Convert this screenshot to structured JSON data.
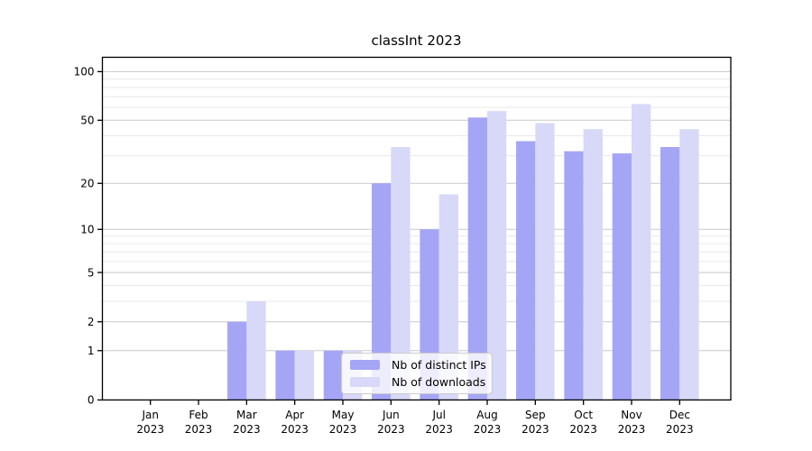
{
  "chart_data": {
    "type": "bar",
    "title": "classInt 2023",
    "categories": [
      "Jan",
      "Feb",
      "Mar",
      "Apr",
      "May",
      "Jun",
      "Jul",
      "Aug",
      "Sep",
      "Oct",
      "Nov",
      "Dec"
    ],
    "x_tick_year": "2023",
    "series": [
      {
        "name": "Nb of distinct IPs",
        "color": "#a5a5f6",
        "values": [
          0,
          0,
          2,
          1,
          1,
          20,
          10,
          52,
          37,
          32,
          31,
          34
        ]
      },
      {
        "name": "Nb of downloads",
        "color": "#d8d8f8",
        "values": [
          0,
          0,
          3,
          1,
          1,
          34,
          17,
          57,
          48,
          44,
          63,
          44
        ]
      }
    ],
    "xlabel": "",
    "ylabel": "",
    "y_axis": {
      "scale": "log1p",
      "tick_values": [
        0,
        1,
        2,
        5,
        10,
        20,
        50,
        100
      ],
      "tick_labels": [
        "0",
        "1",
        "2",
        "5",
        "10",
        "20",
        "50",
        "100"
      ],
      "minor_gridline_values": [
        3,
        4,
        6,
        7,
        8,
        9,
        30,
        40,
        60,
        70,
        80,
        90
      ],
      "range": [
        0,
        126
      ]
    },
    "grid": "horizontal major and minor, light gray",
    "legend_position": "inside axes, lower center-left",
    "colors": {
      "axis": "#000000",
      "grid_major": "#c9c9c9",
      "grid_minor": "#e9e9ed",
      "text": "#000000"
    }
  }
}
